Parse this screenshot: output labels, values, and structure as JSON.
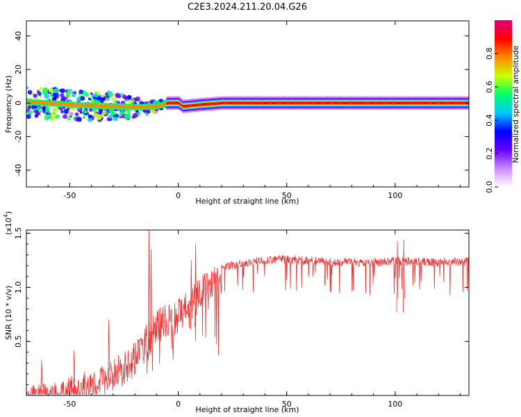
{
  "figure_title": "C2E3.2024.211.20.04.G26",
  "chart_data": [
    {
      "type": "heatmap",
      "title": "C2E3.2024.211.20.04.G26",
      "xlabel": "Height of straight line (km)",
      "ylabel": "Frequency (Hz)",
      "xlim": [
        -70,
        134
      ],
      "ylim": [
        -50,
        49
      ],
      "x_ticks": [
        -50,
        0,
        50,
        100
      ],
      "x_tick_labels": [
        "-50",
        "0",
        "50",
        "100"
      ],
      "y_ticks": [
        -40,
        -20,
        0,
        20,
        40
      ],
      "y_tick_labels": [
        "-40",
        "-20",
        "0",
        "20",
        "40"
      ],
      "colorbar": {
        "label": "Normalized spectral amplitude",
        "range": [
          0,
          1
        ],
        "ticks": [
          0.0,
          0.2,
          0.4,
          0.6,
          0.8
        ],
        "tick_labels": [
          "0.0",
          "0.2",
          "0.4",
          "0.6",
          "0.8"
        ],
        "colors": [
          "#ffffff",
          "#cc88ff",
          "#6600ff",
          "#0000ff",
          "#00ccff",
          "#00ff66",
          "#ccff00",
          "#ff8800",
          "#ff0000",
          "#e0007a"
        ]
      },
      "signal_trace": [
        {
          "x": -70,
          "y": 0.5
        },
        {
          "x": -60,
          "y": 0
        },
        {
          "x": -50,
          "y": -1
        },
        {
          "x": -40,
          "y": -1.5
        },
        {
          "x": -30,
          "y": -2
        },
        {
          "x": -20,
          "y": -2.5
        },
        {
          "x": -10,
          "y": -2
        },
        {
          "x": -5,
          "y": 0
        },
        {
          "x": 0,
          "y": 0
        },
        {
          "x": 2,
          "y": -2
        },
        {
          "x": 10,
          "y": -1
        },
        {
          "x": 20,
          "y": 0
        },
        {
          "x": 134,
          "y": 0
        }
      ],
      "spread_hz": [
        {
          "x": -70,
          "y": 9
        },
        {
          "x": -50,
          "y": 9
        },
        {
          "x": -30,
          "y": 8
        },
        {
          "x": -20,
          "y": 6
        },
        {
          "x": -10,
          "y": 3
        },
        {
          "x": -5,
          "y": 1.5
        },
        {
          "x": 0,
          "y": 1.2
        },
        {
          "x": 20,
          "y": 1
        },
        {
          "x": 134,
          "y": 1
        }
      ]
    },
    {
      "type": "line",
      "xlabel": "Height of straight line (km)",
      "ylabel": "SNR (10 * v/v)",
      "y_multiplier_label": "(x10",
      "y_multiplier_exp": "4",
      "y_multiplier_close": ")",
      "xlim": [
        -70,
        134
      ],
      "ylim": [
        0,
        1.53
      ],
      "x_ticks": [
        -50,
        0,
        50,
        100
      ],
      "x_tick_labels": [
        "-50",
        "0",
        "50",
        "100"
      ],
      "y_ticks": [
        0.5,
        1.0,
        1.5
      ],
      "y_tick_labels": [
        "0.5",
        "1.0",
        "1.5"
      ],
      "color": "#ee3333",
      "envelope": [
        {
          "x": -70,
          "y": 0.08
        },
        {
          "x": -60,
          "y": 0.12
        },
        {
          "x": -50,
          "y": 0.18
        },
        {
          "x": -40,
          "y": 0.25
        },
        {
          "x": -30,
          "y": 0.35
        },
        {
          "x": -20,
          "y": 0.5
        },
        {
          "x": -15,
          "y": 0.65
        },
        {
          "x": -10,
          "y": 0.8
        },
        {
          "x": -5,
          "y": 0.85
        },
        {
          "x": 0,
          "y": 0.9
        },
        {
          "x": 5,
          "y": 1.0
        },
        {
          "x": 10,
          "y": 1.1
        },
        {
          "x": 15,
          "y": 1.18
        },
        {
          "x": 20,
          "y": 1.22
        },
        {
          "x": 30,
          "y": 1.26
        },
        {
          "x": 40,
          "y": 1.29
        },
        {
          "x": 50,
          "y": 1.3
        },
        {
          "x": 60,
          "y": 1.29
        },
        {
          "x": 70,
          "y": 1.28
        },
        {
          "x": 80,
          "y": 1.27
        },
        {
          "x": 90,
          "y": 1.27
        },
        {
          "x": 100,
          "y": 1.28
        },
        {
          "x": 110,
          "y": 1.28
        },
        {
          "x": 120,
          "y": 1.27
        },
        {
          "x": 134,
          "y": 1.28
        }
      ],
      "spikes": [
        {
          "x": -13.5,
          "y": 1.53
        },
        {
          "x": -12.5,
          "y": 1.35
        },
        {
          "x": 8,
          "y": 1.4
        },
        {
          "x": 6,
          "y": 1.25
        },
        {
          "x": 101,
          "y": 1.43
        },
        {
          "x": 104,
          "y": 1.44
        },
        {
          "x": -63,
          "y": 0.33
        },
        {
          "x": -48,
          "y": 0.41
        },
        {
          "x": -32,
          "y": 0.7
        }
      ]
    }
  ]
}
